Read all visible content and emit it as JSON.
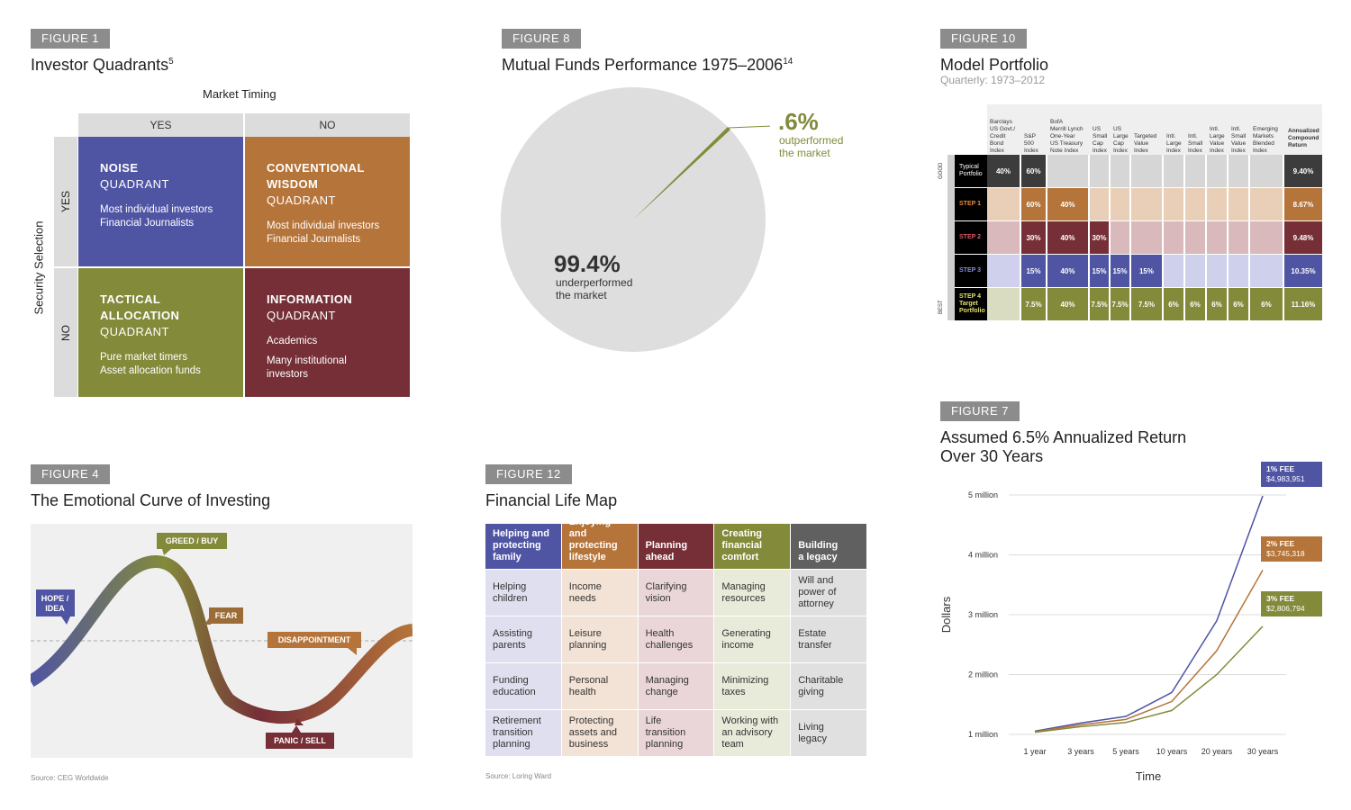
{
  "figure1": {
    "tag": "FIGURE 1",
    "title": "Investor Quadrants",
    "title_sup": "5",
    "top_axis": "Market Timing",
    "side_axis": "Security Selection",
    "col_yes": "YES",
    "col_no": "NO",
    "row_yes": "YES",
    "row_no": "NO",
    "colors": {
      "noise": "#4f54a3",
      "conventional": "#b5743a",
      "tactical": "#838a3a",
      "information": "#762f37"
    },
    "noise": {
      "title": "NOISE",
      "sub": "QUADRANT",
      "desc1": "Most individual investors",
      "desc2": "Financial Journalists"
    },
    "conventional": {
      "title1": "CONVENTIONAL",
      "title2": "WISDOM",
      "sub": "QUADRANT",
      "desc1": "Most individual investors",
      "desc2": "Financial Journalists"
    },
    "tactical": {
      "title1": "TACTICAL",
      "title2": "ALLOCATION",
      "sub": "QUADRANT",
      "desc1": "Pure market timers",
      "desc2": "Asset allocation funds"
    },
    "information": {
      "title": "INFORMATION",
      "sub": "QUADRANT",
      "desc1": "Academics",
      "desc2a": "Many institutional",
      "desc2b": "investors"
    }
  },
  "figure8": {
    "tag": "FIGURE 8",
    "title": "Mutual Funds Performance 1975–2006",
    "title_sup": "14",
    "out_value": ".6%",
    "out_label1": "outperformed",
    "out_label2": "the market",
    "under_value": "99.4%",
    "under_label1": "underperformed",
    "under_label2": "the market"
  },
  "figure10": {
    "tag": "FIGURE 10",
    "title": "Model Portfolio",
    "subtitle": "Quarterly: 1973–2012",
    "headers": [
      [
        "Barclays",
        "US Govt./",
        "Credit",
        "Bond",
        "Index"
      ],
      [
        "S&P",
        "500",
        "Index"
      ],
      [
        "BofA",
        "Merrill Lynch",
        "One-Year",
        "US Treasury",
        "Note Index"
      ],
      [
        "US",
        "Small",
        "Cap",
        "Index"
      ],
      [
        "US",
        "Large",
        "Cap",
        "Index"
      ],
      [
        "Targeted",
        "Value",
        "Index"
      ],
      [
        "Intl.",
        "Large",
        "Index"
      ],
      [
        "Intl.",
        "Small",
        "Index"
      ],
      [
        "Intl.",
        "Large",
        "Value",
        "Index"
      ],
      [
        "Intl.",
        "Small",
        "Value",
        "Index"
      ],
      [
        "Emerging",
        "Markets",
        "Blended",
        "Index"
      ]
    ],
    "return_header": [
      "Annualized",
      "Compound",
      "Return"
    ],
    "side_good": "GOOD",
    "side_best": "BEST",
    "rows": [
      {
        "label": [
          "Typical",
          "Portfolio"
        ],
        "cells": [
          "40%",
          "60%",
          "",
          "",
          "",
          "",
          "",
          "",
          "",
          "",
          ""
        ],
        "ret": "9.40%"
      },
      {
        "label": [
          "STEP 1"
        ],
        "cells": [
          "",
          "60%",
          "40%",
          "",
          "",
          "",
          "",
          "",
          "",
          "",
          ""
        ],
        "ret": "8.67%"
      },
      {
        "label": [
          "STEP 2"
        ],
        "cells": [
          "",
          "30%",
          "40%",
          "30%",
          "",
          "",
          "",
          "",
          "",
          "",
          ""
        ],
        "ret": "9.48%"
      },
      {
        "label": [
          "STEP 3"
        ],
        "cells": [
          "",
          "15%",
          "40%",
          "15%",
          "15%",
          "15%",
          "",
          "",
          "",
          "",
          ""
        ],
        "ret": "10.35%"
      },
      {
        "label": [
          "STEP 4",
          "Target",
          "Portfolio"
        ],
        "cells": [
          "",
          "7.5%",
          "40%",
          "7.5%",
          "7.5%",
          "7.5%",
          "6%",
          "6%",
          "6%",
          "6%",
          "6%"
        ],
        "ret": "11.16%"
      }
    ],
    "colors": {
      "row_dark": [
        "#3c3c3c",
        "#b5743a",
        "#762f37",
        "#4f54a3",
        "#838a3a"
      ],
      "row_light": [
        "#d6d6d6",
        "#e9cfb8",
        "#d9b9bc",
        "#cfd0eb",
        "#d9dcc0"
      ],
      "label_bg": [
        "#000000",
        "#000000",
        "#000000",
        "#000000",
        "#000000"
      ],
      "label_fg": [
        "#ffffff",
        "#e88a3c",
        "#d45a6a",
        "#8a8fe0",
        "#e0e06a"
      ]
    }
  },
  "figure4": {
    "tag": "FIGURE 4",
    "title": "The Emotional Curve of Investing",
    "labels": {
      "hope": [
        "HOPE /",
        "IDEA"
      ],
      "greed": "GREED / BUY",
      "fear": "FEAR",
      "disappointment": "DISAPPOINTMENT",
      "panic": "PANIC / SELL"
    },
    "label_colors": {
      "hope": "#4f54a3",
      "greed": "#838a3a",
      "fear": "#9b6c38",
      "disappointment": "#b5743a",
      "panic": "#762f37"
    },
    "source": "Source: CEG Worldwide"
  },
  "figure12": {
    "tag": "FIGURE 12",
    "title": "Financial Life Map",
    "columns": [
      {
        "head": [
          "Helping and",
          "protecting",
          "family"
        ],
        "color": "#4f54a3",
        "light": "#dfdfef",
        "items": [
          [
            "Helping",
            "children"
          ],
          [
            "Assisting",
            "parents"
          ],
          [
            "Funding",
            "education"
          ],
          [
            "Retirement",
            "transition",
            "planning"
          ]
        ]
      },
      {
        "head": [
          "Enjoying and",
          "protecting",
          "lifestyle"
        ],
        "color": "#b5743a",
        "light": "#f3e3d6",
        "items": [
          [
            "Income",
            "needs"
          ],
          [
            "Leisure",
            "planning"
          ],
          [
            "Personal",
            "health"
          ],
          [
            "Protecting",
            "assets and",
            "business"
          ]
        ]
      },
      {
        "head": [
          "Planning",
          "ahead"
        ],
        "color": "#762f37",
        "light": "#ead6d8",
        "items": [
          [
            "Clarifying",
            "vision"
          ],
          [
            "Health",
            "challenges"
          ],
          [
            "Managing",
            "change"
          ],
          [
            "Life",
            "transition",
            "planning"
          ]
        ]
      },
      {
        "head": [
          "Creating",
          "financial",
          "comfort"
        ],
        "color": "#838a3a",
        "light": "#e9ebda",
        "items": [
          [
            "Managing",
            "resources"
          ],
          [
            "Generating",
            "income"
          ],
          [
            "Minimizing",
            "taxes"
          ],
          [
            "Working with",
            "an advisory",
            "team"
          ]
        ]
      },
      {
        "head": [
          "Building",
          "a legacy"
        ],
        "color": "#606060",
        "light": "#e0e0e0",
        "items": [
          [
            "Will and",
            "power of",
            "attorney"
          ],
          [
            "Estate",
            "transfer"
          ],
          [
            "Charitable",
            "giving"
          ],
          [
            "Living",
            "legacy"
          ]
        ]
      }
    ],
    "source": "Source: Loring Ward"
  },
  "figure7": {
    "tag": "FIGURE 7",
    "title_line1": "Assumed 6.5% Annualized Return",
    "title_line2": "Over 30 Years"
  },
  "chart_data": {
    "type": "line",
    "title": "Assumed 6.5% Annualized Return Over 30 Years",
    "xlabel": "Time",
    "ylabel": "Dollars",
    "categories": [
      "1 year",
      "3 years",
      "5 years",
      "10 years",
      "20 years",
      "30 years"
    ],
    "y_ticks": [
      1000000,
      2000000,
      3000000,
      4000000,
      5000000
    ],
    "y_tick_labels": [
      "1 million",
      "2 million",
      "3 million",
      "4 million",
      "5 million"
    ],
    "ylim": [
      1000000,
      5000000
    ],
    "series": [
      {
        "name": "1% FEE",
        "end_label": "$4,983,951",
        "color": "#4f54a3",
        "values": [
          1055000,
          1190000,
          1300000,
          1700000,
          2900000,
          4983951
        ]
      },
      {
        "name": "2% FEE",
        "end_label": "$3,745,318",
        "color": "#b5743a",
        "values": [
          1045000,
          1160000,
          1250000,
          1550000,
          2400000,
          3745318
        ]
      },
      {
        "name": "3% FEE",
        "end_label": "$2,806,794",
        "color": "#838a3a",
        "values": [
          1035000,
          1130000,
          1200000,
          1400000,
          2000000,
          2806794
        ]
      }
    ]
  }
}
